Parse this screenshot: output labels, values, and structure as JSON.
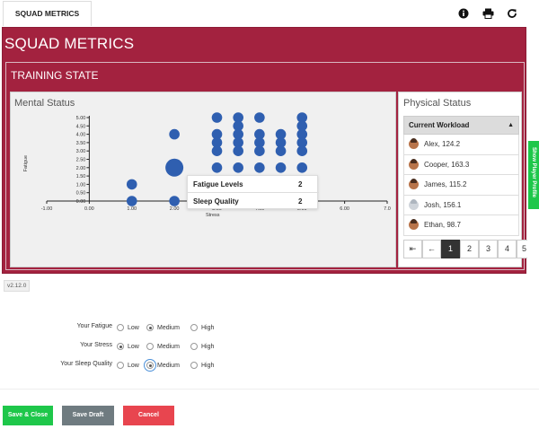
{
  "tab": {
    "label": "SQUAD METRICS"
  },
  "toolbar": {
    "info_icon": "info-icon",
    "print_icon": "print-icon",
    "refresh_icon": "refresh-icon"
  },
  "header": {
    "title": "SQUAD METRICS"
  },
  "section": {
    "title": "TRAINING STATE"
  },
  "mental": {
    "title": "Mental Status",
    "tooltip": {
      "rows": [
        {
          "label": "Fatigue Levels",
          "value": "2"
        },
        {
          "label": "Sleep Quality",
          "value": "2"
        }
      ]
    }
  },
  "chart_data": {
    "type": "scatter",
    "xlabel": "Stress",
    "ylabel": "Fatigue",
    "xlim": [
      -1,
      7
    ],
    "ylim": [
      0,
      5
    ],
    "x_ticks": [
      "-1.00",
      "0.00",
      "1.00",
      "2.00",
      "3.00",
      "4.00",
      "5.00",
      "6.00",
      "7.0"
    ],
    "y_ticks": [
      "0.00",
      "0.50",
      "1.00",
      "1.50",
      "2.00",
      "2.50",
      "3.00",
      "3.50",
      "4.00",
      "4.50",
      "5.00"
    ],
    "points": [
      {
        "x": 1,
        "y": 1,
        "size": 1
      },
      {
        "x": 1,
        "y": 0,
        "size": 1
      },
      {
        "x": 2,
        "y": 2,
        "size": 2
      },
      {
        "x": 2,
        "y": 4,
        "size": 1
      },
      {
        "x": 2,
        "y": 0,
        "size": 1
      },
      {
        "x": 3,
        "y": 5,
        "size": 1
      },
      {
        "x": 3,
        "y": 4,
        "size": 1
      },
      {
        "x": 3,
        "y": 3.5,
        "size": 1
      },
      {
        "x": 3,
        "y": 3,
        "size": 1
      },
      {
        "x": 3,
        "y": 2,
        "size": 1
      },
      {
        "x": 3.5,
        "y": 5,
        "size": 1
      },
      {
        "x": 3.5,
        "y": 4.5,
        "size": 1
      },
      {
        "x": 3.5,
        "y": 4,
        "size": 1
      },
      {
        "x": 3.5,
        "y": 3.5,
        "size": 1
      },
      {
        "x": 3.5,
        "y": 3,
        "size": 1
      },
      {
        "x": 3.5,
        "y": 2,
        "size": 1
      },
      {
        "x": 4,
        "y": 5,
        "size": 1
      },
      {
        "x": 4,
        "y": 4,
        "size": 1
      },
      {
        "x": 4,
        "y": 3.5,
        "size": 1
      },
      {
        "x": 4,
        "y": 3,
        "size": 1
      },
      {
        "x": 4,
        "y": 2,
        "size": 1
      },
      {
        "x": 4.5,
        "y": 4,
        "size": 1
      },
      {
        "x": 4.5,
        "y": 3.5,
        "size": 1
      },
      {
        "x": 4.5,
        "y": 3,
        "size": 1
      },
      {
        "x": 4.5,
        "y": 2,
        "size": 1
      },
      {
        "x": 5,
        "y": 5,
        "size": 1
      },
      {
        "x": 5,
        "y": 4.5,
        "size": 1
      },
      {
        "x": 5,
        "y": 4,
        "size": 1
      },
      {
        "x": 5,
        "y": 3.5,
        "size": 1
      },
      {
        "x": 5,
        "y": 3,
        "size": 1
      },
      {
        "x": 5,
        "y": 2,
        "size": 1
      }
    ],
    "color": "#2f5fb0"
  },
  "physical": {
    "title": "Physical Status",
    "column_header": "Current Workload",
    "rows": [
      {
        "name": "Alex, 124.2",
        "avatar": "photo"
      },
      {
        "name": "Cooper, 163.3",
        "avatar": "photo"
      },
      {
        "name": "James, 115.2",
        "avatar": "photo"
      },
      {
        "name": "Josh, 156.1",
        "avatar": "placeholder"
      },
      {
        "name": "Ethan, 98.7",
        "avatar": "photo"
      }
    ],
    "pager": {
      "first": "⇤",
      "prev": "←",
      "pages": [
        "1",
        "2",
        "3",
        "4",
        "5"
      ],
      "current": "1"
    }
  },
  "side_tab": {
    "label": "Show Player Profile"
  },
  "version": "v2.12.0",
  "form": {
    "options": [
      "Low",
      "Medium",
      "High"
    ],
    "rows": [
      {
        "label": "Your Fatigue",
        "selected": "Medium"
      },
      {
        "label": "Your Stress",
        "selected": "Low"
      },
      {
        "label": "Your Sleep Quality",
        "selected": "Medium"
      }
    ]
  },
  "buttons": {
    "save_close": {
      "label": "Save & Close",
      "color": "#1ec74a"
    },
    "save_draft": {
      "label": "Save Draft",
      "color": "#6f7b80"
    },
    "cancel": {
      "label": "Cancel",
      "color": "#e8454f"
    }
  },
  "colors": {
    "primary": "#a3223f",
    "accent": "#2f5fb0"
  }
}
